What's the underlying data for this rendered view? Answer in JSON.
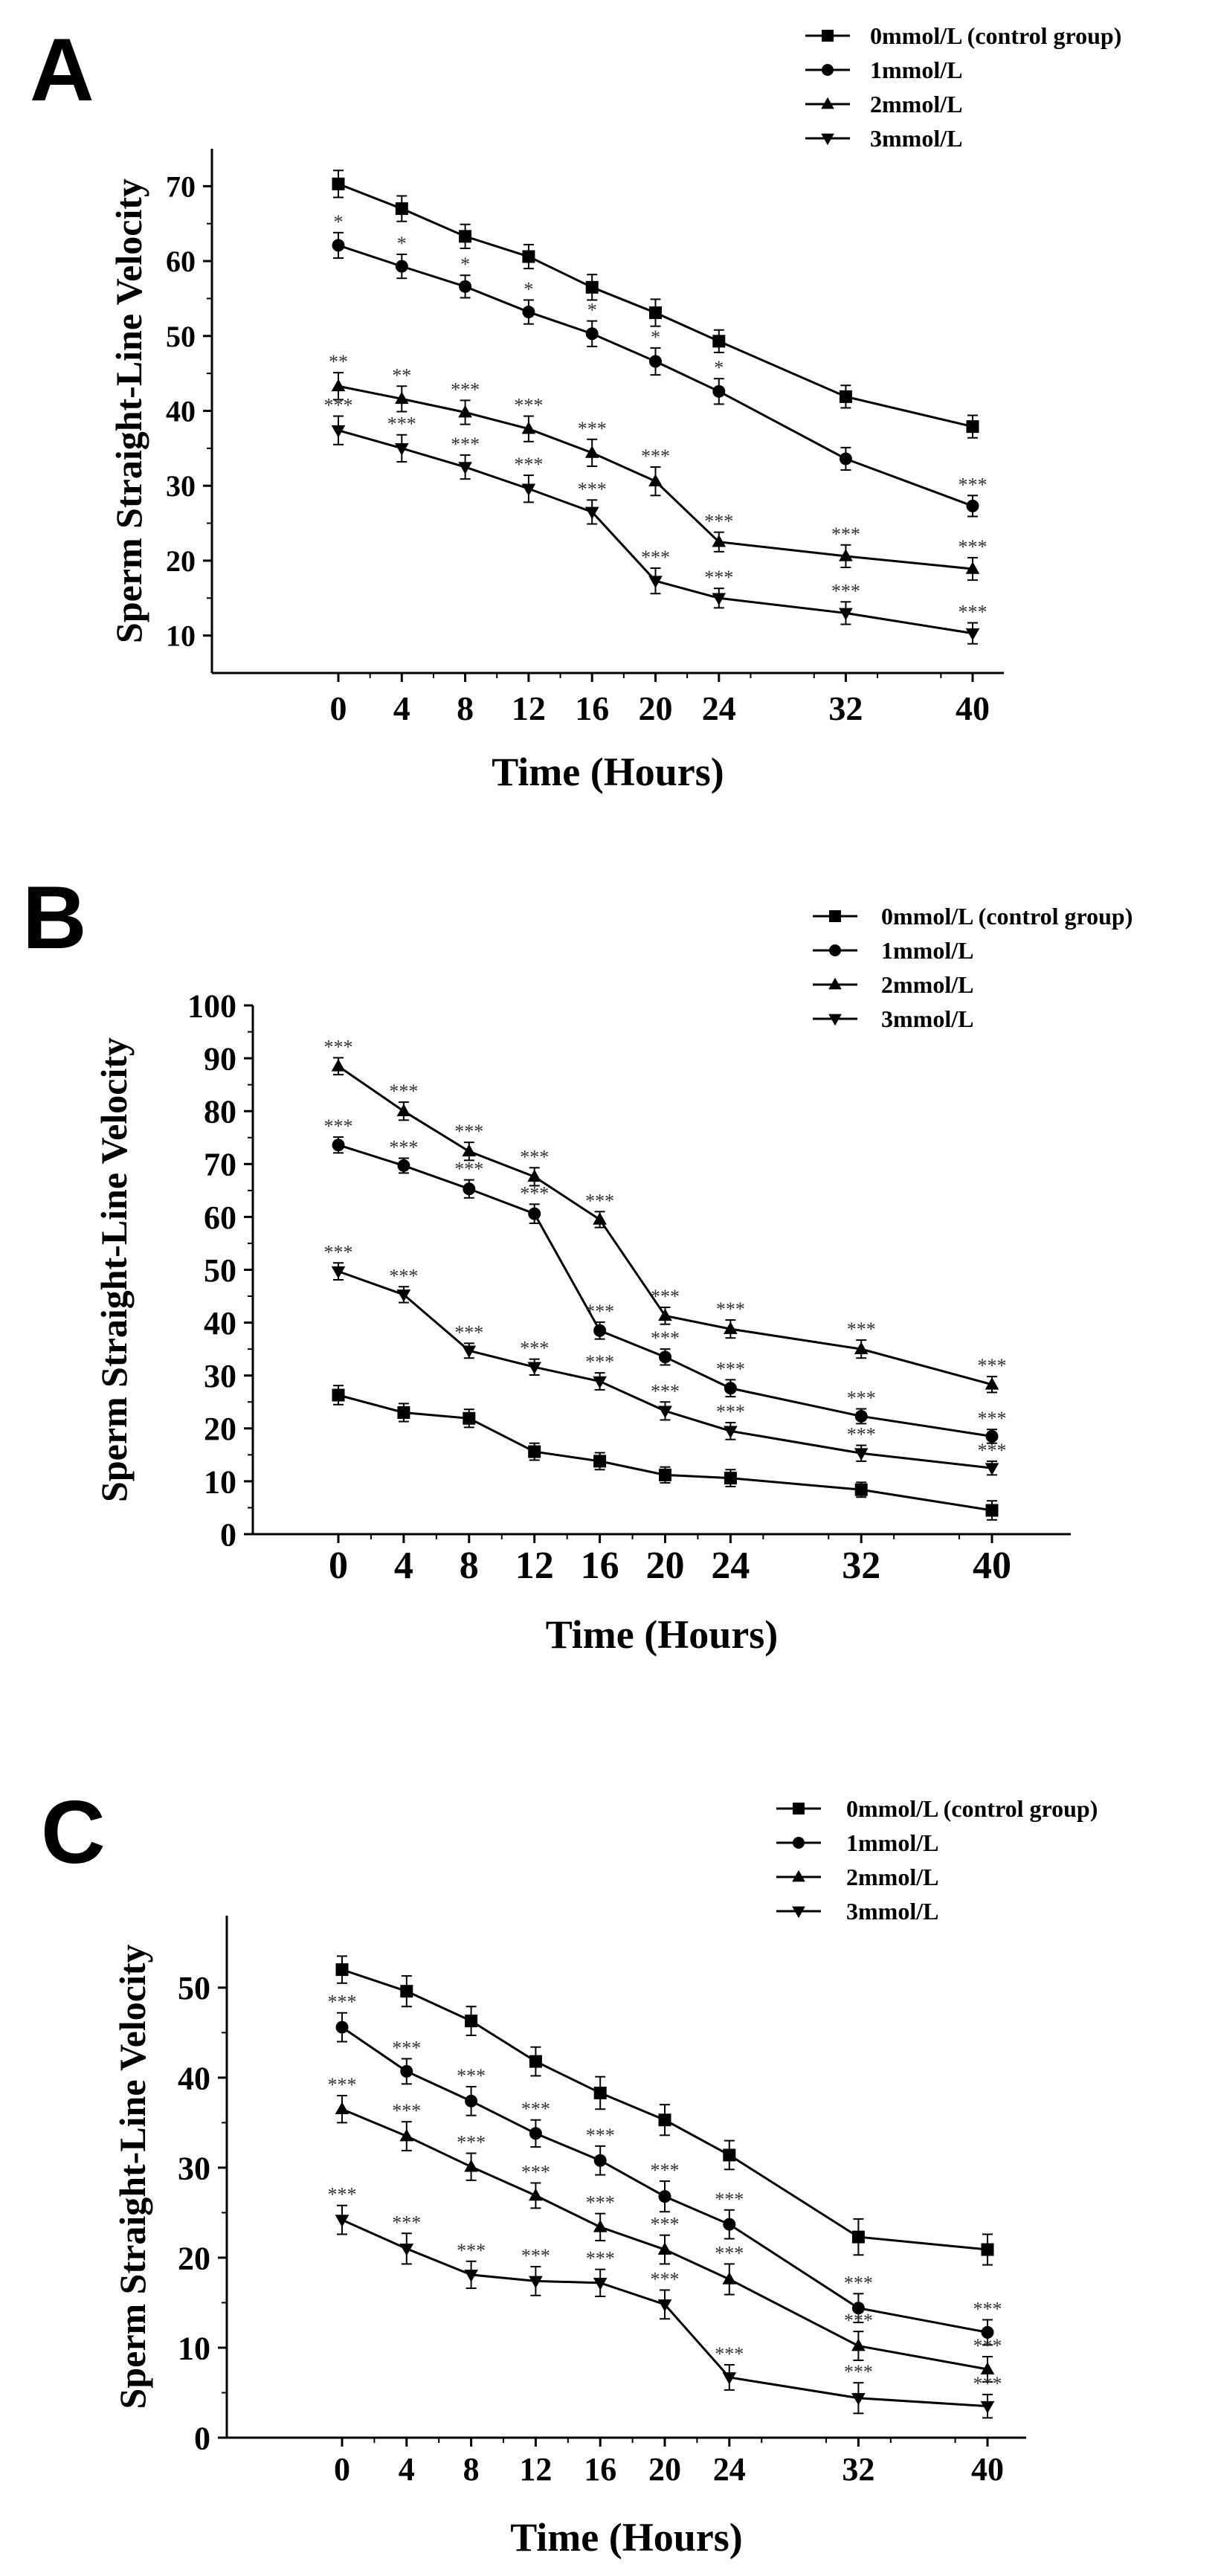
{
  "figure": {
    "colors": {
      "line": "#000000",
      "text": "#000000",
      "annotation": "#333333",
      "background": "#ffffff"
    }
  },
  "chart_data": [
    {
      "panel": "A",
      "type": "line",
      "xlabel": "Time (Hours)",
      "ylabel": "Sperm Straight-Line Velocity",
      "x": [
        0,
        4,
        8,
        12,
        16,
        20,
        24,
        32,
        40
      ],
      "xticks": [
        "0",
        "4",
        "8",
        "12",
        "16",
        "20",
        "24",
        "32",
        "40"
      ],
      "ylim": [
        5,
        75
      ],
      "yticks": [
        10,
        20,
        30,
        40,
        50,
        60,
        70
      ],
      "legend": "top-right",
      "series": [
        {
          "name": "0mmol/L (control group)",
          "marker": "square",
          "values": [
            70.3,
            67.0,
            63.3,
            60.6,
            56.5,
            53.1,
            49.3,
            41.9,
            37.9
          ],
          "errors": [
            1.8,
            1.7,
            1.6,
            1.6,
            1.7,
            1.8,
            1.5,
            1.5,
            1.5
          ],
          "sig": [
            "",
            "",
            "",
            "",
            "",
            "",
            "",
            "",
            ""
          ]
        },
        {
          "name": "1mmol/L",
          "marker": "circle",
          "values": [
            62.1,
            59.3,
            56.6,
            53.2,
            50.3,
            46.6,
            42.6,
            33.6,
            27.3
          ],
          "errors": [
            1.7,
            1.6,
            1.5,
            1.6,
            1.7,
            1.8,
            1.7,
            1.5,
            1.4
          ],
          "sig": [
            "*",
            "*",
            "*",
            "*",
            "*",
            "*",
            "*",
            "",
            "***"
          ]
        },
        {
          "name": "2mmol/L",
          "marker": "triangle-up",
          "values": [
            43.3,
            41.6,
            39.8,
            37.6,
            34.4,
            30.6,
            22.5,
            20.6,
            18.9
          ],
          "errors": [
            1.8,
            1.7,
            1.6,
            1.7,
            1.8,
            1.9,
            1.3,
            1.5,
            1.5
          ],
          "sig": [
            "**",
            "**",
            "***",
            "***",
            "***",
            "***",
            "***",
            "***",
            "***"
          ]
        },
        {
          "name": "3mmol/L",
          "marker": "triangle-down",
          "values": [
            37.4,
            35.0,
            32.5,
            29.6,
            26.5,
            17.3,
            15.0,
            13.0,
            10.3
          ],
          "errors": [
            1.9,
            1.8,
            1.6,
            1.8,
            1.6,
            1.7,
            1.3,
            1.5,
            1.4
          ],
          "sig": [
            "***",
            "***",
            "***",
            "***",
            "***",
            "***",
            "***",
            "***",
            "***"
          ]
        }
      ]
    },
    {
      "panel": "B",
      "type": "line",
      "xlabel": "Time (Hours)",
      "ylabel": "Sperm Straight-Line Velocity",
      "x": [
        0,
        4,
        8,
        12,
        16,
        20,
        24,
        32,
        40
      ],
      "xticks": [
        "0",
        "4",
        "8",
        "12",
        "16",
        "20",
        "24",
        "32",
        "40"
      ],
      "ylim": [
        0,
        100
      ],
      "yticks": [
        0,
        10,
        20,
        30,
        40,
        50,
        60,
        70,
        80,
        90,
        100
      ],
      "legend": "top-right",
      "series": [
        {
          "name": "0mmol/L (control group)",
          "marker": "square",
          "values": [
            26.3,
            23.0,
            21.9,
            15.6,
            13.8,
            11.2,
            10.6,
            8.4,
            4.5
          ],
          "errors": [
            1.8,
            1.7,
            1.7,
            1.6,
            1.6,
            1.5,
            1.6,
            1.4,
            1.8
          ],
          "sig": [
            "",
            "",
            "",
            "",
            "",
            "",
            "",
            "",
            ""
          ]
        },
        {
          "name": "1mmol/L",
          "marker": "circle",
          "values": [
            73.6,
            69.7,
            65.3,
            60.6,
            38.5,
            33.5,
            27.6,
            22.3,
            18.5
          ],
          "errors": [
            1.5,
            1.4,
            1.7,
            1.8,
            1.6,
            1.5,
            1.6,
            1.4,
            1.3
          ],
          "sig": [
            "***",
            "***",
            "***",
            "***",
            "***",
            "***",
            "***",
            "***",
            "***"
          ]
        },
        {
          "name": "2mmol/L",
          "marker": "triangle-up",
          "values": [
            88.5,
            80.0,
            72.4,
            67.6,
            59.5,
            41.3,
            38.8,
            35.0,
            28.3
          ],
          "errors": [
            1.6,
            1.7,
            1.7,
            1.7,
            1.5,
            1.6,
            1.7,
            1.7,
            1.5
          ],
          "sig": [
            "***",
            "***",
            "***",
            "***",
            "***",
            "***",
            "***",
            "***",
            "***"
          ]
        },
        {
          "name": "3mmol/L",
          "marker": "triangle-down",
          "values": [
            49.7,
            45.3,
            34.7,
            31.6,
            28.9,
            23.3,
            19.5,
            15.3,
            12.5
          ],
          "errors": [
            1.6,
            1.5,
            1.4,
            1.5,
            1.6,
            1.7,
            1.6,
            1.5,
            1.3
          ],
          "sig": [
            "***",
            "***",
            "***",
            "***",
            "***",
            "***",
            "***",
            "***",
            "***"
          ]
        }
      ]
    },
    {
      "panel": "C",
      "type": "line",
      "xlabel": "Time (Hours)",
      "ylabel": "Sperm Straight-Line Velocity",
      "x": [
        0,
        4,
        8,
        12,
        16,
        20,
        24,
        32,
        40
      ],
      "xticks": [
        "0",
        "4",
        "8",
        "12",
        "16",
        "20",
        "24",
        "32",
        "40"
      ],
      "ylim": [
        0,
        58
      ],
      "yticks": [
        0,
        10,
        20,
        30,
        40,
        50
      ],
      "legend": "top-right",
      "series": [
        {
          "name": "0mmol/L (control group)",
          "marker": "square",
          "values": [
            52.0,
            49.6,
            46.3,
            41.8,
            38.3,
            35.3,
            31.4,
            22.3,
            20.9
          ],
          "errors": [
            1.5,
            1.7,
            1.6,
            1.6,
            1.8,
            1.7,
            1.6,
            2.0,
            1.7
          ],
          "sig": [
            "",
            "",
            "",
            "",
            "",
            "",
            "",
            "",
            ""
          ]
        },
        {
          "name": "1mmol/L",
          "marker": "circle",
          "values": [
            45.6,
            40.7,
            37.4,
            33.8,
            30.8,
            26.8,
            23.7,
            14.4,
            11.7
          ],
          "errors": [
            1.6,
            1.4,
            1.6,
            1.5,
            1.6,
            1.7,
            1.6,
            1.6,
            1.4
          ],
          "sig": [
            "***",
            "***",
            "***",
            "***",
            "***",
            "***",
            "***",
            "***",
            "***"
          ]
        },
        {
          "name": "2mmol/L",
          "marker": "triangle-up",
          "values": [
            36.5,
            33.5,
            30.1,
            26.9,
            23.4,
            20.9,
            17.6,
            10.2,
            7.6
          ],
          "errors": [
            1.5,
            1.6,
            1.5,
            1.4,
            1.5,
            1.6,
            1.7,
            1.6,
            1.4
          ],
          "sig": [
            "***",
            "***",
            "***",
            "***",
            "***",
            "***",
            "***",
            "***",
            "***"
          ]
        },
        {
          "name": "3mmol/L",
          "marker": "triangle-down",
          "values": [
            24.2,
            21.0,
            18.1,
            17.4,
            17.2,
            14.8,
            6.7,
            4.4,
            3.5
          ],
          "errors": [
            1.6,
            1.7,
            1.5,
            1.6,
            1.5,
            1.6,
            1.4,
            1.7,
            1.3
          ],
          "sig": [
            "***",
            "***",
            "***",
            "***",
            "***",
            "***",
            "***",
            "***",
            "***"
          ]
        }
      ]
    }
  ]
}
